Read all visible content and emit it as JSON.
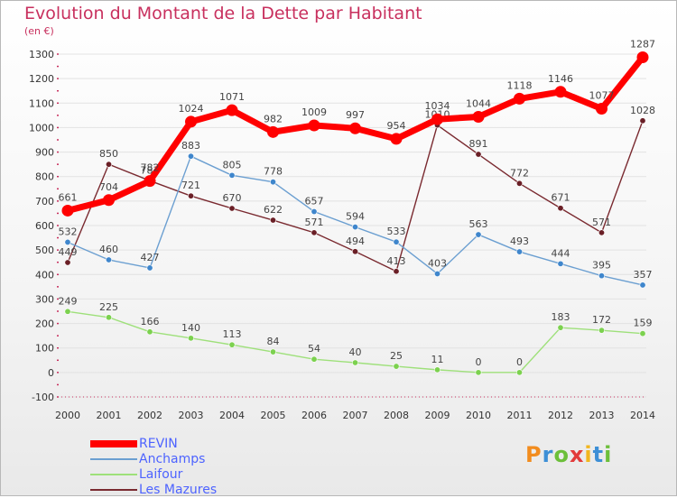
{
  "title": "Evolution du Montant de la Dette par Habitant",
  "subtitle": "(en €)",
  "logo_text": "Proxiti",
  "colors": {
    "title": "#c8305e",
    "grid": "#e2e2e2",
    "axis_tick": "#c8305e",
    "axis_text": "#333333",
    "label_text": "#444444"
  },
  "chart_data": {
    "type": "line",
    "categories": [
      "2000",
      "2001",
      "2002",
      "2003",
      "2004",
      "2005",
      "2006",
      "2007",
      "2008",
      "2009",
      "2010",
      "2011",
      "2012",
      "2013",
      "2014"
    ],
    "ylim": [
      -100,
      1300
    ],
    "yticks": [
      -100,
      0,
      100,
      200,
      300,
      400,
      500,
      600,
      700,
      800,
      900,
      1000,
      1100,
      1200,
      1300
    ],
    "grid": "horizontal",
    "legend_position": "bottom-left",
    "series": [
      {
        "name": "Les Mazures",
        "color": "#7a2a30",
        "marker": "#6a1f26",
        "values": [
          449,
          850,
          783,
          721,
          670,
          622,
          571,
          494,
          413,
          1010,
          891,
          772,
          671,
          571,
          1028
        ]
      },
      {
        "name": "Laifour",
        "color": "#9ee07a",
        "marker": "#7cd14f",
        "values": [
          249,
          225,
          166,
          140,
          113,
          84,
          54,
          40,
          25,
          11,
          0,
          0,
          183,
          172,
          159
        ]
      },
      {
        "name": "Anchamps",
        "color": "#6b9fd1",
        "marker": "#3f86cc",
        "values": [
          532,
          460,
          427,
          883,
          805,
          778,
          657,
          594,
          533,
          403,
          563,
          493,
          444,
          395,
          357
        ]
      },
      {
        "name": "REVIN",
        "color": "#ff0000",
        "marker": "#ff0000",
        "values": [
          661,
          704,
          782,
          1024,
          1071,
          982,
          1009,
          997,
          954,
          1034,
          1044,
          1118,
          1146,
          1077,
          1287
        ]
      }
    ]
  },
  "legend": [
    {
      "name": "REVIN",
      "color": "#ff0000",
      "text_color": "#4d63ff"
    },
    {
      "name": "Anchamps",
      "color": "#6b9fd1",
      "text_color": "#4d63ff"
    },
    {
      "name": "Laifour",
      "color": "#9ee07a",
      "text_color": "#4d63ff"
    },
    {
      "name": "Les Mazures",
      "color": "#7a2a30",
      "text_color": "#4d63ff"
    }
  ]
}
